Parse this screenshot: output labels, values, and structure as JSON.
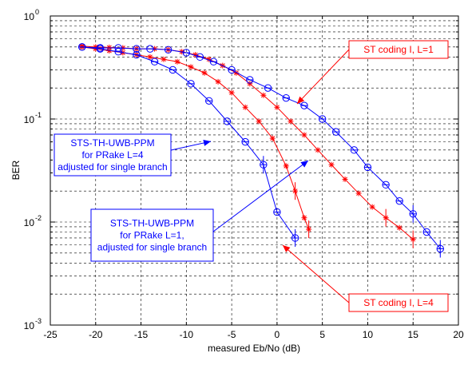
{
  "chart_data": {
    "type": "line",
    "title": "",
    "xlabel": "measured Eb/No (dB)",
    "ylabel": "BER",
    "xlim": [
      -25,
      20
    ],
    "ylim": [
      0.001,
      1
    ],
    "yscale": "log",
    "grid": "dashed major and minor",
    "x_ticks": [
      "-25",
      "-20",
      "-15",
      "-10",
      "-5",
      "0",
      "5",
      "10",
      "15",
      "20"
    ],
    "y_ticks": [
      {
        "base": "10",
        "exp": "-3",
        "value": 0.001
      },
      {
        "base": "10",
        "exp": "-2",
        "value": 0.01
      },
      {
        "base": "10",
        "exp": "-1",
        "value": 0.1
      },
      {
        "base": "10",
        "exp": "0",
        "value": 1
      }
    ],
    "series": [
      {
        "color": "#ff0000",
        "marker": "star",
        "points": [
          [
            -21.5,
            0.51
          ],
          [
            -20,
            0.5
          ],
          [
            -18.5,
            0.495
          ],
          [
            -17,
            0.49
          ],
          [
            -15.5,
            0.48
          ],
          [
            -13.5,
            0.48
          ],
          [
            -12,
            0.47
          ],
          [
            -10.5,
            0.45
          ],
          [
            -9,
            0.42
          ],
          [
            -7.5,
            0.38
          ],
          [
            -6,
            0.33
          ],
          [
            -4.5,
            0.28
          ],
          [
            -3,
            0.22
          ],
          [
            -1.5,
            0.17
          ],
          [
            0,
            0.13
          ],
          [
            1.5,
            0.095
          ],
          [
            3,
            0.07
          ],
          [
            4.5,
            0.05
          ],
          [
            6,
            0.036
          ],
          [
            7.5,
            0.026
          ],
          [
            9,
            0.019
          ],
          [
            10.5,
            0.014
          ],
          [
            12,
            0.011
          ],
          [
            13.5,
            0.0088
          ],
          [
            15,
            0.0068
          ]
        ]
      },
      {
        "color": "#ff0000",
        "marker": "star",
        "points": [
          [
            -21.5,
            0.5
          ],
          [
            -20,
            0.48
          ],
          [
            -18.5,
            0.46
          ],
          [
            -17,
            0.44
          ],
          [
            -15.5,
            0.42
          ],
          [
            -14,
            0.4
          ],
          [
            -12.5,
            0.38
          ],
          [
            -11,
            0.36
          ],
          [
            -9.5,
            0.32
          ],
          [
            -8,
            0.28
          ],
          [
            -6.5,
            0.23
          ],
          [
            -5,
            0.18
          ],
          [
            -3.5,
            0.13
          ],
          [
            -2,
            0.095
          ],
          [
            -0.5,
            0.065
          ],
          [
            1,
            0.035
          ],
          [
            2,
            0.02
          ],
          [
            3,
            0.011
          ],
          [
            3.5,
            0.0085
          ]
        ]
      },
      {
        "color": "#0000ff",
        "marker": "circle",
        "points": [
          [
            -21.5,
            0.5
          ],
          [
            -19.5,
            0.49
          ],
          [
            -17.5,
            0.49
          ],
          [
            -15.5,
            0.48
          ],
          [
            -14,
            0.48
          ],
          [
            -12,
            0.47
          ],
          [
            -10,
            0.44
          ],
          [
            -8.5,
            0.4
          ],
          [
            -7,
            0.36
          ],
          [
            -5,
            0.3
          ],
          [
            -3,
            0.24
          ],
          [
            -1,
            0.2
          ],
          [
            1,
            0.16
          ],
          [
            3,
            0.135
          ],
          [
            5,
            0.1
          ],
          [
            6.5,
            0.075
          ],
          [
            8.5,
            0.05
          ],
          [
            10,
            0.034
          ],
          [
            12,
            0.023
          ],
          [
            13.5,
            0.016
          ],
          [
            15,
            0.012
          ],
          [
            16.5,
            0.008
          ],
          [
            18,
            0.0055
          ]
        ]
      },
      {
        "color": "#0000ff",
        "marker": "circle",
        "points": [
          [
            -21.5,
            0.5
          ],
          [
            -19.5,
            0.48
          ],
          [
            -17.5,
            0.45
          ],
          [
            -15.5,
            0.42
          ],
          [
            -13.5,
            0.36
          ],
          [
            -11.5,
            0.3
          ],
          [
            -9.5,
            0.22
          ],
          [
            -7.5,
            0.15
          ],
          [
            -5.5,
            0.095
          ],
          [
            -3.5,
            0.06
          ],
          [
            -1.5,
            0.036
          ],
          [
            0,
            0.0125
          ],
          [
            2,
            0.007
          ]
        ]
      }
    ],
    "annotations": [
      {
        "lines": [
          "ST coding I, L=1"
        ],
        "color": "#ff0000"
      },
      {
        "lines": [
          "ST coding I, L=4"
        ],
        "color": "#ff0000"
      },
      {
        "lines": [
          "STS-TH-UWB-PPM",
          "for PRake L=4",
          "adjusted for single branch"
        ],
        "color": "#0000ff"
      },
      {
        "lines": [
          "STS-TH-UWB-PPM",
          "for PRake L=1,",
          "adjusted for single branch"
        ],
        "color": "#0000ff"
      }
    ]
  }
}
